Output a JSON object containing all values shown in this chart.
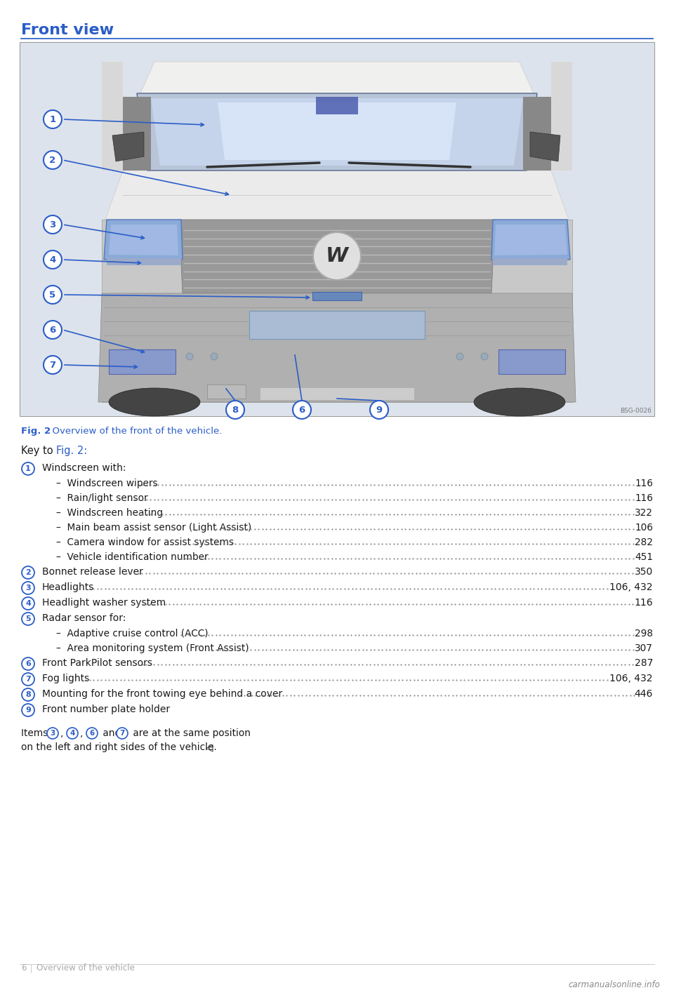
{
  "title": "Front view",
  "title_color": "#2B5DC8",
  "title_fontsize": 16,
  "line_color": "#3366CC",
  "bg_color": "#FFFFFF",
  "img_bg_color": "#E8EBF0",
  "fig_caption_bold": "Fig. 2",
  "fig_caption_rest": "  Overview of the front of the vehicle.",
  "fig_caption_color": "#2B5DC8",
  "text_color": "#1A1A1A",
  "circle_color": "#2B5DC8",
  "items": [
    {
      "num": "1",
      "label": "Windscreen with:",
      "page": "",
      "underline": false,
      "subitems": [
        {
          "text": "Windscreen wipers",
          "page": "116"
        },
        {
          "text": "Rain/light sensor",
          "page": "116"
        },
        {
          "text": "Windscreen heating",
          "page": "322"
        },
        {
          "text": "Main beam assist sensor (Light Assist)",
          "page": "106"
        },
        {
          "text": "Camera window for assist systems",
          "page": "282"
        },
        {
          "text": "Vehicle identification number",
          "page": "451"
        }
      ]
    },
    {
      "num": "2",
      "label": "Bonnet release lever",
      "page": "350",
      "underline": false,
      "subitems": []
    },
    {
      "num": "3",
      "label": "Headlights",
      "page": "106, 432",
      "underline": false,
      "subitems": []
    },
    {
      "num": "4",
      "label": "Headlight washer system",
      "page": "116",
      "underline": false,
      "subitems": []
    },
    {
      "num": "5",
      "label": "Radar sensor for:",
      "page": "",
      "underline": true,
      "subitems": [
        {
          "text": "Adaptive cruise control (ACC)",
          "page": "298"
        },
        {
          "text": "Area monitoring system (Front Assist)",
          "page": "307"
        }
      ]
    },
    {
      "num": "6",
      "label": "Front ParkPilot sensors",
      "page": "287",
      "underline": false,
      "subitems": []
    },
    {
      "num": "7",
      "label": "Fog lights",
      "page": "106, 432",
      "underline": false,
      "subitems": []
    },
    {
      "num": "8",
      "label": "Mounting for the front towing eye behind a cover",
      "page": "446",
      "underline": false,
      "subitems": []
    },
    {
      "num": "9",
      "label": "Front number plate holder",
      "page": "",
      "underline": false,
      "subitems": []
    }
  ],
  "footer_note_line1": "Items ",
  "footer_nums": [
    "3",
    "4",
    "6",
    "7"
  ],
  "footer_note_end": " are at the same position",
  "footer_note_line2": "on the left and right sides of the vehicle.",
  "footer_arrow": "◁",
  "footer_page_num": "6",
  "footer_page_text": "Overview of the vehicle",
  "watermark": "carmanualsonline.info",
  "bsg_code": "BSG-0026",
  "label_fontsize": 10.0,
  "subitem_fontsize": 9.8,
  "key_fontsize": 10.5
}
